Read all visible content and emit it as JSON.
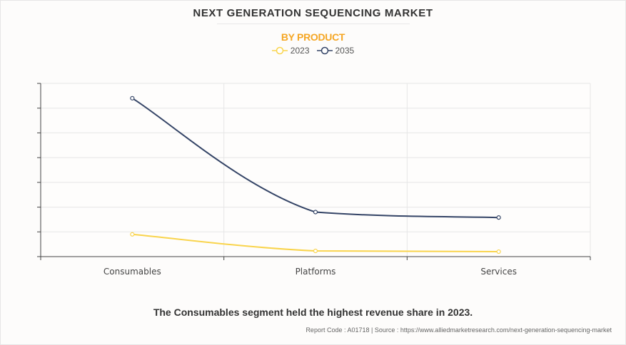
{
  "chart_data": {
    "type": "line",
    "title": "NEXT GENERATION SEQUENCING MARKET",
    "subtitle": "BY PRODUCT",
    "categories": [
      "Consumables",
      "Platforms",
      "Services"
    ],
    "series": [
      {
        "name": "2023",
        "color": "#f9d44c",
        "values": [
          0.9,
          0.23,
          0.2
        ]
      },
      {
        "name": "2035",
        "color": "#344466",
        "values": [
          6.4,
          1.8,
          1.58
        ]
      }
    ],
    "xlabel": "",
    "ylabel": "",
    "ylim": [
      0,
      7
    ],
    "ytick_count": 8,
    "ytick_labels_shown": false,
    "grid": true,
    "legend": "top-center"
  },
  "caption": "The Consumables segment held the highest revenue share in 2023.",
  "source": "Report Code : A01718  |  Source : https://www.alliedmarketresearch.com/next-generation-sequencing-market"
}
